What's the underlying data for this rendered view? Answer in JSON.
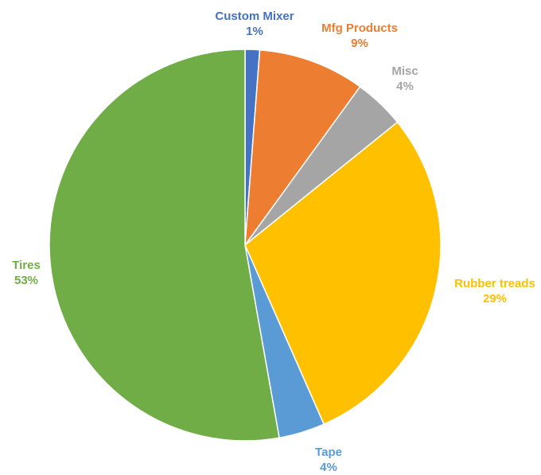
{
  "chart_data": {
    "type": "pie",
    "title": "",
    "slices": [
      {
        "label": "Custom Mixer",
        "percent_label": "1%",
        "value": 1.2,
        "color": "#4472C4"
      },
      {
        "label": "Mfg Products",
        "percent_label": "9%",
        "value": 8.8,
        "color": "#ED7D31"
      },
      {
        "label": "Misc",
        "percent_label": "4%",
        "value": 4.2,
        "color": "#A5A5A5"
      },
      {
        "label": "Rubber treads",
        "percent_label": "29%",
        "value": 29.2,
        "color": "#FFC000"
      },
      {
        "label": "Tape",
        "percent_label": "4%",
        "value": 3.8,
        "color": "#5B9BD5"
      },
      {
        "label": "Tires",
        "percent_label": "53%",
        "value": 52.8,
        "color": "#70AD47"
      }
    ]
  }
}
